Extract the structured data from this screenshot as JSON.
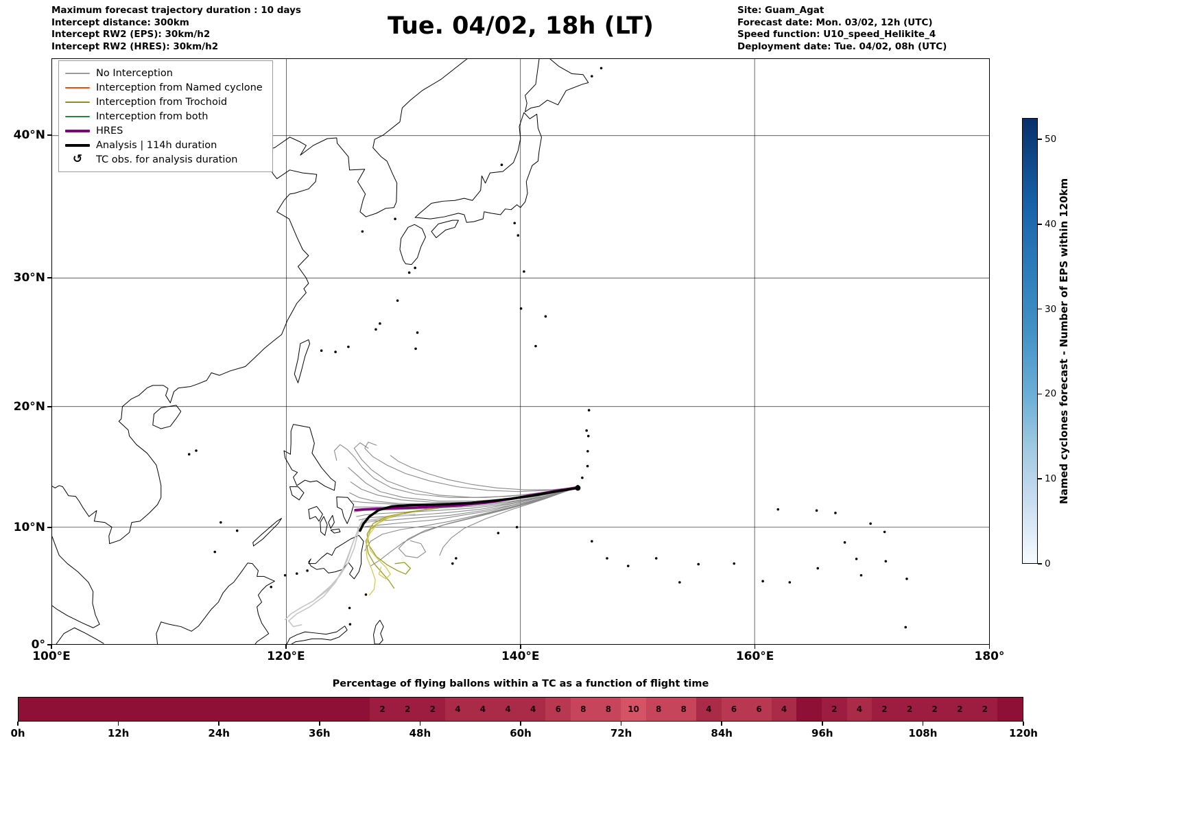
{
  "header": {
    "left": [
      "Maximum forecast trajectory duration : 10 days",
      "Intercept distance: 300km",
      "Intercept RW2 (EPS):  30km/h2",
      "Intercept RW2 (HRES): 30km/h2"
    ],
    "title": "Tue. 04/02, 18h (LT)",
    "right": [
      "Site: Guam_Agat",
      "Forecast date: Mon. 03/02, 12h (UTC)",
      "Speed function: U10_speed_Helikite_4",
      "Deployment date: Tue. 04/02, 08h (UTC)"
    ]
  },
  "map": {
    "xticks": [
      {
        "v": 100,
        "label": "100°E",
        "grid": false
      },
      {
        "v": 120,
        "label": "120°E",
        "grid": true
      },
      {
        "v": 140,
        "label": "140°E",
        "grid": true
      },
      {
        "v": 160,
        "label": "160°E",
        "grid": true
      },
      {
        "v": 180,
        "label": "180°",
        "grid": false
      }
    ],
    "yticks": [
      {
        "v": 0,
        "label": "0°",
        "grid": false
      },
      {
        "v": 10,
        "label": "10°N",
        "grid": true
      },
      {
        "v": 20,
        "label": "20°N",
        "grid": true
      },
      {
        "v": 30,
        "label": "30°N",
        "grid": true
      },
      {
        "v": 40,
        "label": "40°N",
        "grid": true
      }
    ],
    "legend": [
      {
        "label": "No Interception",
        "color": "#999999",
        "lw": 2
      },
      {
        "label": "Interception from Named cyclone",
        "color": "#ff4500",
        "lw": 2
      },
      {
        "label": "Interception from Trochoid",
        "color": "#8f8f1f",
        "lw": 2
      },
      {
        "label": "Interception from both",
        "color": "#1e8a3c",
        "lw": 2
      },
      {
        "label": "HRES",
        "color": "#800080",
        "lw": 4
      },
      {
        "label": "Analysis | 114h duration",
        "color": "#000000",
        "lw": 4
      },
      {
        "label": "TC obs. for analysis duration",
        "symbol": "↺"
      }
    ]
  },
  "colorbar": {
    "label": "Named cyclones forecast - Number of EPS within 120km",
    "ticks": [
      0,
      10,
      20,
      30,
      40,
      50
    ],
    "vmax": 52.5,
    "gradient_top": "#08306b",
    "gradient_bottom": "#f7fbff"
  },
  "chart_data": {
    "type": "line",
    "subtype": "balloon_trajectory_map",
    "map_extent": {
      "lon": [
        100,
        180
      ],
      "lat": [
        0,
        44.9
      ]
    },
    "colors": {
      "gray": "#8a8a8a",
      "faded": "#c6c6c6",
      "trochoid": "#9b9b25",
      "trochoid_light": "#d4ca55",
      "hres": "#800080",
      "analysis": "#000000"
    },
    "deployment_point": {
      "lon": 144.9,
      "lat": 13.3
    },
    "trajectories": [
      {
        "c": "gray",
        "w": 1.1,
        "pts": [
          144.85,
          13.35,
          142.5,
          13.0,
          140,
          12.7,
          137,
          12.5,
          134,
          12.5,
          131,
          12.8,
          129,
          13.3,
          127.5,
          14.1,
          126.5,
          15.0,
          125.8,
          15.9,
          125.2,
          16.5,
          124.6,
          16.9,
          124.1,
          16.4,
          124.3,
          15.6
        ]
      },
      {
        "c": "gray",
        "w": 1.1,
        "pts": [
          144.85,
          13.35,
          142,
          12.9,
          139,
          12.6,
          136,
          12.5,
          133,
          12.7,
          130.5,
          13.2,
          128.6,
          13.9,
          127.3,
          14.8,
          126.4,
          15.7,
          125.8,
          16.6,
          126.3,
          17.05,
          127.0,
          16.6
        ]
      },
      {
        "c": "gray",
        "w": 1.1,
        "pts": [
          144.85,
          13.35,
          142,
          12.8,
          139,
          12.4,
          136,
          12.2,
          133,
          12.2,
          130,
          12.5,
          128,
          13.0,
          126.8,
          13.7,
          126.0,
          14.4,
          125.3,
          15.0
        ]
      },
      {
        "c": "gray",
        "w": 1.1,
        "pts": [
          144.85,
          13.35,
          141.5,
          12.7,
          138.5,
          12.3,
          135.5,
          12.1,
          132.5,
          12.1,
          129.8,
          12.3,
          127.8,
          12.7,
          126.4,
          13.2,
          125.5,
          13.8
        ]
      },
      {
        "c": "gray",
        "w": 1.1,
        "pts": [
          144.85,
          13.35,
          141.5,
          12.6,
          138,
          12.2,
          135,
          12.0,
          132,
          11.95,
          129.5,
          12.0,
          127.5,
          12.2,
          126.2,
          12.5,
          125.4,
          12.9
        ]
      },
      {
        "c": "gray",
        "w": 1.1,
        "pts": [
          144.85,
          13.35,
          142,
          12.7,
          139,
          12.3,
          136,
          12.0,
          133,
          11.9,
          130,
          11.9,
          128,
          12.0,
          126.5,
          12.1,
          125.6,
          12.2
        ]
      },
      {
        "c": "gray",
        "w": 1.1,
        "pts": [
          144.85,
          13.35,
          142,
          12.6,
          139,
          12.15,
          136,
          11.9,
          133,
          11.75,
          130,
          11.7,
          128,
          11.7,
          126.6,
          11.7,
          125.7,
          11.7
        ]
      },
      {
        "c": "gray",
        "w": 1.1,
        "pts": [
          144.85,
          13.35,
          141.8,
          12.55,
          138.8,
          12.05,
          135.8,
          11.75,
          132.8,
          11.6,
          130,
          11.5,
          128,
          11.45,
          126.6,
          11.4,
          125.8,
          11.3
        ]
      },
      {
        "c": "gray",
        "w": 1.1,
        "pts": [
          144.85,
          13.35,
          141.8,
          12.5,
          138.8,
          11.95,
          135.8,
          11.6,
          132.8,
          11.4,
          130,
          11.25,
          128,
          11.15,
          126.8,
          11.05,
          126.0,
          10.9
        ]
      },
      {
        "c": "gray",
        "w": 1.1,
        "pts": [
          144.85,
          13.35,
          142.2,
          12.6,
          139.5,
          12.0,
          136.5,
          11.5,
          133.5,
          11.2,
          130.8,
          11.0,
          128.6,
          10.9,
          127.0,
          10.8,
          126.2,
          10.6
        ]
      },
      {
        "c": "gray",
        "w": 1.1,
        "pts": [
          144.85,
          13.35,
          142.2,
          12.5,
          139.5,
          11.9,
          136.8,
          11.4,
          134,
          11.0,
          131.3,
          10.8,
          129,
          10.6,
          127.4,
          10.5,
          126.4,
          10.3
        ]
      },
      {
        "c": "gray",
        "w": 1.1,
        "pts": [
          144.85,
          13.35,
          142.5,
          12.6,
          140,
          12.0,
          137.5,
          11.4,
          135,
          11.0,
          132.5,
          10.6,
          130.2,
          10.4,
          128.2,
          10.2,
          126.8,
          10.05,
          126.1,
          9.9
        ]
      },
      {
        "c": "gray",
        "w": 1.1,
        "pts": [
          144.85,
          13.35,
          142,
          12.4,
          139,
          11.6,
          136.2,
          10.9,
          133.8,
          10.3,
          131.8,
          9.7,
          130.4,
          9.0,
          129.6,
          8.2,
          130.2,
          7.55,
          131.2,
          7.4,
          131.9,
          7.9,
          131.5,
          8.6,
          130.6,
          8.85
        ]
      },
      {
        "c": "gray",
        "w": 1.1,
        "pts": [
          144.85,
          13.35,
          141.8,
          12.3,
          138.8,
          11.5,
          136,
          10.8,
          133.5,
          10.2,
          131.5,
          9.5,
          130,
          8.7,
          128.9,
          7.9,
          128.0,
          7.2,
          127.2,
          6.7
        ]
      },
      {
        "c": "gray",
        "w": 1.1,
        "pts": [
          144.85,
          13.35,
          142,
          12.45,
          139.2,
          11.7,
          136.5,
          11.05,
          134,
          10.5,
          131.8,
          10.1,
          129.8,
          9.8,
          128.2,
          9.4,
          127.2,
          8.8,
          126.7,
          8.0
        ]
      },
      {
        "c": "gray",
        "w": 1.1,
        "pts": [
          144.85,
          13.35,
          142.3,
          13.1,
          139.8,
          13.0,
          137.2,
          13.1,
          134.6,
          13.4,
          132.2,
          13.9,
          130.2,
          14.5,
          128.6,
          15.2,
          127.4,
          15.9,
          126.7,
          16.6,
          127.0,
          17.1,
          127.7,
          16.85
        ]
      },
      {
        "c": "gray",
        "w": 1.1,
        "pts": [
          144.85,
          13.35,
          142.6,
          13.15,
          140.3,
          13.15,
          138,
          13.3,
          135.8,
          13.6,
          133.8,
          14.0,
          132.1,
          14.5,
          130.7,
          15.0,
          129.6,
          15.5,
          128.9,
          16.0
        ]
      },
      {
        "c": "gray",
        "w": 1.1,
        "pts": [
          144.85,
          13.35,
          142,
          12.35,
          139.3,
          11.5,
          137,
          10.7,
          135.2,
          9.9,
          134.1,
          9.1,
          133.4,
          8.3,
          133.1,
          7.6
        ]
      },
      {
        "c": "faded",
        "w": 1.6,
        "pts": [
          131,
          11.1,
          128.8,
          10.9,
          127.2,
          10.6,
          126.4,
          10.4,
          125.9,
          9.2,
          125.4,
          7.9,
          124.9,
          6.6,
          124.2,
          5.3,
          123.2,
          4.1,
          122.0,
          3.2,
          120.9,
          2.6,
          120.2,
          2.0,
          120.6,
          1.5,
          121.3,
          1.65
        ]
      },
      {
        "c": "faded",
        "w": 1.6,
        "pts": [
          130.4,
          11.0,
          128.4,
          10.8,
          126.9,
          10.4,
          126.3,
          10.2,
          125.7,
          8.7,
          125.2,
          7.2,
          124.5,
          5.8,
          123.5,
          4.6,
          122.3,
          3.7,
          121.2,
          3.1,
          120.4,
          2.6,
          119.9,
          2.1
        ]
      },
      {
        "c": "faded",
        "w": 1.6,
        "pts": [
          130.8,
          11.05,
          128.8,
          10.85,
          127.1,
          10.6,
          126.5,
          10.6,
          126.1,
          9.4,
          125.8,
          8.2,
          125.3,
          7.0,
          124.6,
          5.9,
          123.8,
          5.0,
          123.0,
          4.3,
          122.4,
          3.8
        ]
      },
      {
        "c": "trochoid",
        "w": 1.3,
        "pts": [
          133,
          11.6,
          130.5,
          11.3,
          128.6,
          10.9,
          127.4,
          10.3,
          126.9,
          9.4,
          127.1,
          8.4,
          127.7,
          7.5,
          128.6,
          6.8,
          129.5,
          6.3,
          130.2,
          6.0,
          130.6,
          6.5,
          130.1,
          7.0,
          129.3,
          6.9
        ]
      },
      {
        "c": "trochoid",
        "w": 1.3,
        "pts": [
          132,
          11.5,
          129.8,
          11.1,
          128.2,
          10.6,
          127.2,
          9.8,
          126.8,
          8.8,
          127.0,
          7.8,
          127.5,
          6.9,
          128.2,
          6.1,
          128.8,
          5.4,
          129.2,
          4.8
        ]
      },
      {
        "c": "trochoid_light",
        "w": 1.3,
        "pts": [
          130,
          11.2,
          128.3,
          10.7,
          127.3,
          10.0,
          126.9,
          9.0,
          127.2,
          8.0,
          127.9,
          7.2,
          128.5,
          6.6,
          128.9,
          6.0,
          128.5,
          5.6,
          127.9,
          6.0,
          128.1,
          6.6
        ]
      },
      {
        "c": "trochoid_light",
        "w": 1.3,
        "pts": [
          129,
          10.9,
          127.8,
          10.3,
          127.1,
          9.4,
          126.8,
          8.4,
          126.9,
          7.4,
          127.3,
          6.4,
          127.6,
          5.5,
          127.5,
          4.7,
          127.1,
          4.2
        ]
      },
      {
        "c": "hres",
        "w": 3.5,
        "pts": [
          144.85,
          13.35,
          143,
          13.05,
          141,
          12.7,
          139,
          12.35,
          137,
          12.05,
          135,
          11.85,
          133,
          11.75,
          131,
          11.65,
          129.3,
          11.6,
          127.8,
          11.55,
          126.6,
          11.5,
          125.9,
          11.45
        ]
      },
      {
        "c": "analysis",
        "w": 3.5,
        "pts": [
          144.9,
          13.3,
          143,
          13.0,
          141,
          12.65,
          139.2,
          12.4,
          137.5,
          12.2,
          135.8,
          12.05,
          134,
          11.95,
          132.2,
          11.9,
          130.5,
          11.85,
          129,
          11.75,
          127.9,
          11.45,
          127.1,
          10.9,
          126.6,
          10.3,
          126.3,
          9.7
        ]
      }
    ],
    "flight_bar": {
      "title": "Percentage of flying ballons within a TC as a function of flight time",
      "xticks": [
        "0h",
        "12h",
        "24h",
        "36h",
        "48h",
        "60h",
        "72h",
        "84h",
        "96h",
        "108h",
        "120h"
      ],
      "cell_hours": 3,
      "total_hours": 120,
      "values": [
        0,
        0,
        0,
        0,
        0,
        0,
        0,
        0,
        0,
        0,
        0,
        0,
        0,
        0,
        2,
        2,
        2,
        4,
        4,
        4,
        4,
        6,
        8,
        8,
        10,
        8,
        8,
        4,
        6,
        6,
        4,
        0,
        2,
        4,
        2,
        2,
        2,
        2,
        2,
        0
      ],
      "color_zero": "#8e1036",
      "color_max": "#e2606d",
      "value_max": 12
    }
  }
}
